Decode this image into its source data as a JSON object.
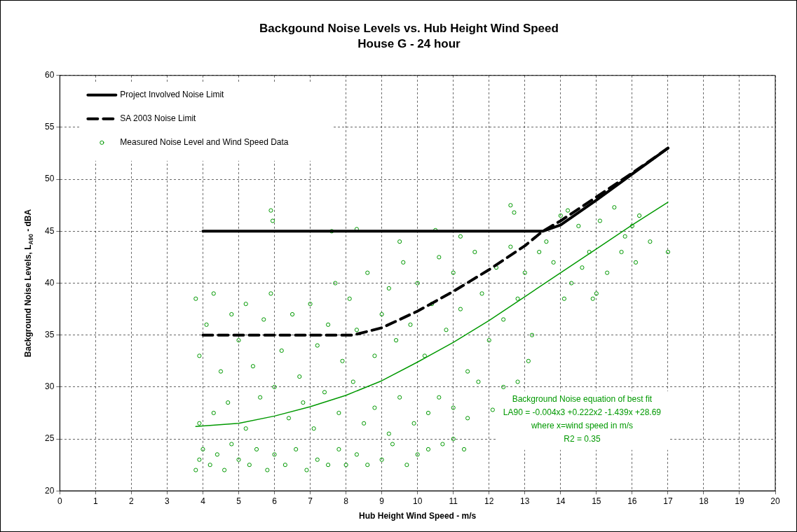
{
  "chart_data": {
    "type": "scatter",
    "title": "Backgound Noise Levels vs. Hub Height Wind Speed",
    "subtitle": "House G - 24 hour",
    "xlabel": "Hub Height Wind Speed - m/s",
    "ylabel": "Background Noise Levels, L$_{A90}$ - dBA",
    "xlim": [
      0,
      20
    ],
    "xticks": [
      0,
      1,
      2,
      3,
      4,
      5,
      6,
      7,
      8,
      9,
      10,
      11,
      12,
      13,
      14,
      15,
      16,
      17,
      18,
      19,
      20
    ],
    "ylim": [
      20,
      60
    ],
    "yticks": [
      20,
      25,
      30,
      35,
      40,
      45,
      50,
      55,
      60
    ],
    "grid": true,
    "legend": "top left",
    "annotations": [
      "Background Noise equation of best fit",
      "LA90 = -0.004x3 +0.222x2 -1.439x +28.69",
      "where x=wind speed in m/s",
      "R2 = 0.35"
    ],
    "series": [
      {
        "name": "Project Involved Noise Limit",
        "type": "line",
        "line_style": "solid",
        "marker": "none",
        "color": "#000000",
        "x": [
          4,
          13.5,
          14,
          15,
          16,
          17
        ],
        "values": [
          45,
          45,
          45.6,
          48,
          50.5,
          53
        ]
      },
      {
        "name": "SA 2003 Noise Limit",
        "type": "line",
        "line_style": "dashed",
        "marker": "none",
        "color": "#000000",
        "x": [
          4,
          8.2,
          9,
          10,
          11,
          12,
          13,
          13.5,
          14,
          15,
          16,
          17
        ],
        "values": [
          35,
          35,
          35.7,
          37.3,
          39.2,
          41.3,
          43.6,
          45,
          46,
          48.3,
          50.6,
          53
        ]
      },
      {
        "name": "Measured Noise Level and Wind Speed Data",
        "marker": "circle",
        "color": "#009900",
        "x": [
          3.8,
          3.9,
          4,
          4.2,
          4.4,
          4.6,
          4.8,
          5,
          5.3,
          5.5,
          5.8,
          6,
          6.3,
          6.6,
          6.9,
          7.2,
          7.5,
          7.8,
          8,
          8.3,
          8.6,
          9,
          9.3,
          9.7,
          10,
          10.3,
          10.7,
          11,
          11.3,
          3.9,
          4.3,
          4.7,
          5.2,
          5.6,
          6,
          6.4,
          6.8,
          7.1,
          7.4,
          7.8,
          8.2,
          8.5,
          8.8,
          9.2,
          9.5,
          9.9,
          10.3,
          10.6,
          11,
          11.4,
          11.7,
          12.1,
          12.4,
          12.8,
          13.1,
          3.8,
          3.9,
          4.1,
          4.3,
          4.5,
          4.8,
          5,
          5.2,
          5.4,
          5.7,
          5.9,
          6.2,
          6.5,
          6.7,
          7,
          7.2,
          7.5,
          7.7,
          7.9,
          8.1,
          8.3,
          8.6,
          8.8,
          9,
          9.2,
          9.4,
          9.6,
          9.8,
          10,
          10.2,
          10.4,
          10.6,
          10.8,
          11,
          11.2,
          11.4,
          11.6,
          11.8,
          12,
          12.2,
          12.4,
          12.6,
          12.8,
          13,
          13.2,
          13.4,
          5.9,
          5.95,
          7.6,
          8.3,
          10.5,
          12.6,
          12.7,
          11.2,
          9.5,
          13.6,
          13.8,
          14,
          14.2,
          14.3,
          14.5,
          14.6,
          14.8,
          15,
          15.1,
          15.3,
          15.5,
          15.7,
          15.8,
          16,
          16.1,
          16.2,
          16.5,
          17,
          14.9,
          14.1
        ],
        "values": [
          22,
          23,
          24,
          22.5,
          23.5,
          22,
          24.5,
          23,
          22.5,
          24,
          22,
          23.5,
          22.5,
          24,
          22,
          23,
          22.5,
          24,
          22.5,
          23.5,
          22.5,
          23,
          24.5,
          22.5,
          23.5,
          24,
          24.5,
          25,
          24,
          26.5,
          27.5,
          28.5,
          26,
          29,
          30,
          27,
          28.5,
          26,
          29.5,
          27.5,
          30.5,
          26.5,
          28,
          25.5,
          29,
          26.5,
          27.5,
          29,
          28,
          27,
          30.5,
          27.8,
          30,
          30.5,
          32.5,
          38.5,
          33,
          36,
          39,
          31.5,
          37,
          34.5,
          38,
          32,
          36.5,
          39,
          33.5,
          37,
          31,
          38,
          34,
          36,
          40,
          32.5,
          38.5,
          35.5,
          41,
          33,
          37,
          39.5,
          34.5,
          42,
          36,
          40,
          33,
          38,
          42.5,
          35.5,
          41,
          37.5,
          31.5,
          43,
          39,
          34.5,
          41.5,
          36.5,
          43.5,
          38.5,
          41,
          35,
          43,
          47,
          46,
          45,
          45.2,
          45.1,
          47.5,
          46.8,
          44.5,
          44,
          44,
          42,
          46.5,
          47,
          40,
          45.5,
          41.5,
          43,
          39,
          46,
          41,
          47.3,
          43,
          44.5,
          45.5,
          42,
          46.5,
          44,
          43,
          38.5,
          38.5
        ]
      },
      {
        "type": "line",
        "line_style": "solid",
        "marker": "none",
        "color": "#009900",
        "x": [
          3.8,
          5,
          6,
          7,
          8,
          9,
          10,
          11,
          12,
          13,
          14,
          15,
          16,
          17
        ],
        "values": [
          26.2,
          26.5,
          27.2,
          28.1,
          29.2,
          30.6,
          32.4,
          34.3,
          36.4,
          38.7,
          41,
          43.3,
          45.6,
          47.8
        ]
      }
    ]
  }
}
